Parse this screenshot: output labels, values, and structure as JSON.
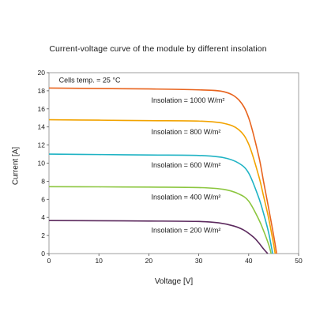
{
  "chart_data": {
    "type": "line",
    "title": "Current-voltage curve of the module by different insolation",
    "xlabel": "Voltage [V]",
    "ylabel": "Current [A]",
    "xlim": [
      0,
      50
    ],
    "ylim": [
      0,
      20
    ],
    "xticks": [
      0,
      10,
      20,
      30,
      40,
      50
    ],
    "yticks": [
      0,
      2,
      4,
      6,
      8,
      10,
      12,
      14,
      16,
      18,
      20
    ],
    "grid": false,
    "annotations": [
      "Cells temp. = 25 °C"
    ],
    "series": [
      {
        "name": "Insolation = 1000 W/m²",
        "color": "#e8641e",
        "x": [
          0,
          10,
          20,
          30,
          35,
          38,
          40,
          42,
          43,
          44,
          45,
          45.6
        ],
        "y": [
          18.3,
          18.25,
          18.2,
          18.1,
          17.9,
          17.0,
          15.0,
          10.8,
          7.9,
          5.0,
          2.0,
          0
        ]
      },
      {
        "name": "Insolation = 800 W/m²",
        "color": "#f2a300",
        "x": [
          0,
          10,
          20,
          30,
          35,
          38,
          40,
          42,
          43,
          44,
          45,
          45.3
        ],
        "y": [
          14.8,
          14.75,
          14.7,
          14.65,
          14.4,
          13.7,
          12.1,
          8.6,
          6.3,
          3.9,
          1.0,
          0
        ]
      },
      {
        "name": "Insolation = 600 W/m²",
        "color": "#1fb3c4",
        "x": [
          0,
          10,
          20,
          30,
          35,
          38,
          40,
          42,
          43,
          44,
          44.8
        ],
        "y": [
          11.0,
          10.95,
          10.9,
          10.85,
          10.6,
          10.0,
          8.9,
          6.2,
          4.4,
          2.3,
          0
        ]
      },
      {
        "name": "Insolation = 400 W/m²",
        "color": "#8cc63f",
        "x": [
          0,
          10,
          20,
          30,
          35,
          38,
          40,
          42,
          43,
          44,
          44.5
        ],
        "y": [
          7.4,
          7.38,
          7.35,
          7.3,
          7.1,
          6.6,
          5.8,
          3.8,
          2.5,
          1.0,
          0
        ]
      },
      {
        "name": "Insolation = 200 W/m²",
        "color": "#5c2a5e",
        "x": [
          0,
          10,
          20,
          30,
          34,
          37,
          39,
          41,
          42,
          43,
          43.8
        ],
        "y": [
          3.65,
          3.63,
          3.6,
          3.55,
          3.4,
          3.05,
          2.6,
          1.8,
          1.2,
          0.5,
          0
        ]
      }
    ],
    "series_labels": [
      {
        "text": "Insolation = 1000 W/m²",
        "x": 20.5,
        "y": 16.7
      },
      {
        "text": "Insolation = 800 W/m²",
        "x": 20.5,
        "y": 13.2
      },
      {
        "text": "Insolation = 600 W/m²",
        "x": 20.5,
        "y": 9.5
      },
      {
        "text": "Insolation = 400 W/m²",
        "x": 20.5,
        "y": 6.0
      },
      {
        "text": "Insolation = 200 W/m²",
        "x": 20.5,
        "y": 2.3
      }
    ],
    "annotation_position": {
      "x": 2,
      "y": 18.9
    }
  }
}
